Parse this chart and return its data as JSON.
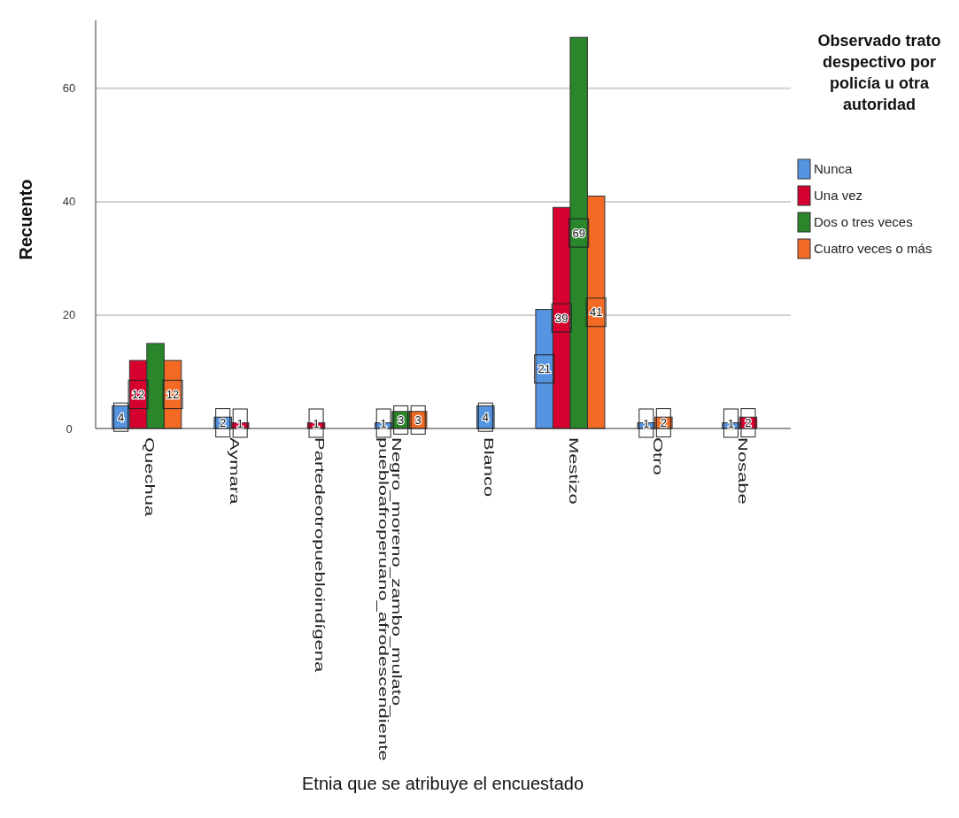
{
  "chart_data": {
    "type": "bar",
    "xlabel": "Etnia que se atribuye el encuestado",
    "ylabel": "Recuento",
    "legend_title": "Observado trato despectivo por policía u otra autoridad",
    "legend": "right",
    "grid": "y",
    "ylim": [
      0,
      72
    ],
    "yticks": [
      0,
      20,
      40,
      60
    ],
    "categories": [
      "Quechua",
      "Aymara",
      "Partedeotropuebloindígena",
      "Negro_moreno_zambo_mulato_puebloafroperuano_afrodescendiente",
      "Blanco",
      "Mestizo",
      "Otro",
      "Nosabe"
    ],
    "series": [
      {
        "name": "Nunca",
        "color": "#5594e0",
        "values": [
          4,
          2,
          null,
          1,
          4,
          21,
          1,
          1
        ],
        "value_labels": [
          "4",
          "2",
          null,
          "1",
          "4",
          "21",
          "1",
          "1"
        ]
      },
      {
        "name": "Una vez",
        "color": "#d6002f",
        "values": [
          12,
          1,
          1,
          null,
          null,
          39,
          null,
          2
        ],
        "value_labels": [
          "12",
          "1",
          "1",
          null,
          null,
          "39",
          null,
          "2"
        ]
      },
      {
        "name": "Dos o tres veces",
        "color": "#2a862a",
        "values": [
          15,
          null,
          null,
          3,
          null,
          69,
          null,
          null
        ],
        "value_labels": [
          null,
          null,
          null,
          "3",
          null,
          "69",
          null,
          null
        ]
      },
      {
        "name": "Cuatro veces o más",
        "color": "#f26a24",
        "values": [
          12,
          null,
          null,
          3,
          null,
          41,
          2,
          null
        ],
        "value_labels": [
          "12",
          null,
          null,
          "3",
          null,
          "41",
          "2",
          null
        ]
      }
    ]
  }
}
